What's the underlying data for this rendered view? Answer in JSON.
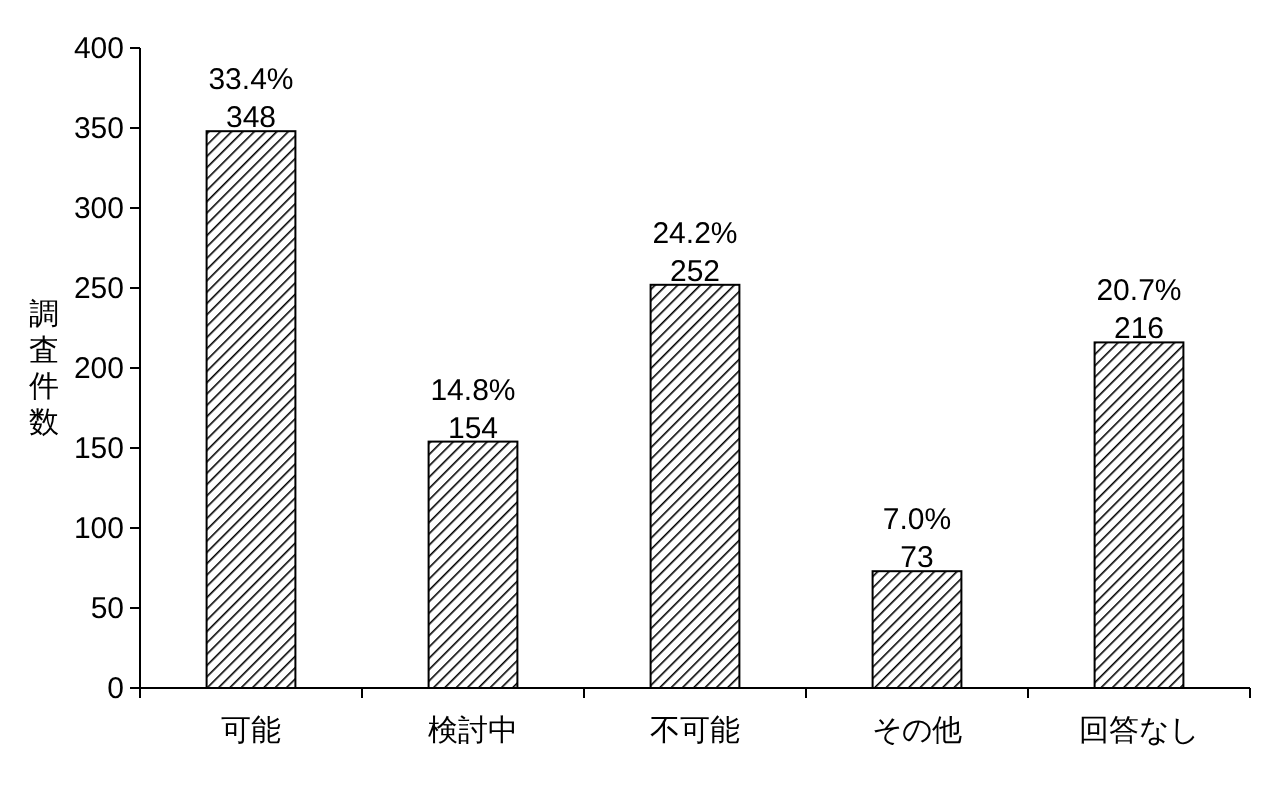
{
  "chart_data": {
    "type": "bar",
    "ylabel": "調査件数",
    "categories": [
      "可能",
      "検討中",
      "不可能",
      "その他",
      "回答なし"
    ],
    "values": [
      348,
      154,
      252,
      73,
      216
    ],
    "color": "#000000",
    "ylim": [
      0,
      400
    ],
    "yticks": [
      0,
      50,
      100,
      150,
      200,
      250,
      300,
      350,
      400
    ],
    "data_labels": true,
    "grid": false,
    "annotations": [
      {
        "text": "33.4%",
        "x": "可能",
        "y": 348
      },
      {
        "text": "14.8%",
        "x": "検討中",
        "y": 154
      },
      {
        "text": "24.2%",
        "x": "不可能",
        "y": 252
      },
      {
        "text": "7.0%",
        "x": "その他",
        "y": 73
      },
      {
        "text": "20.7%",
        "x": "回答なし",
        "y": 216
      }
    ]
  }
}
